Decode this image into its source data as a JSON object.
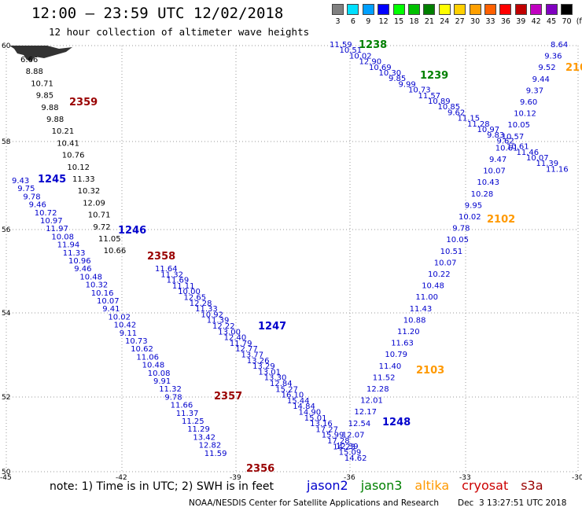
{
  "header": {
    "title": "12:00 – 23:59 UTC 12/02/2018",
    "subtitle": "12 hour collection of altimeter wave heights"
  },
  "colorscale": {
    "labels": [
      "3",
      "6",
      "9",
      "12",
      "15",
      "18",
      "21",
      "24",
      "27",
      "30",
      "33",
      "36",
      "39",
      "42",
      "45",
      "70",
      "(ft)"
    ],
    "colors": [
      "#808080",
      "#00e0ff",
      "#00a0ff",
      "#0000ff",
      "#00ff00",
      "#00c000",
      "#008000",
      "#ffff00",
      "#ffd000",
      "#ffa000",
      "#ff6000",
      "#ff0000",
      "#c00000",
      "#c000c0",
      "#8000c0",
      "#000000"
    ]
  },
  "axes": {
    "lat_labels": [
      "60",
      "58",
      "56",
      "54",
      "52",
      "50"
    ],
    "lon_labels": [
      "-45",
      "-42",
      "-39",
      "-36",
      "-33",
      "-30"
    ]
  },
  "colors": {
    "jason2": "#0000cc",
    "jason3": "#008000",
    "altika": "#ff9900",
    "cryosat": "#cc0000",
    "s3a": "#990000",
    "j3_obs": "#66cc44",
    "s3a_obs": "#22aacc"
  },
  "times": [
    {
      "t": "1238",
      "c": "jason3"
    },
    {
      "t": "1239",
      "c": "jason3"
    },
    {
      "t": "2102",
      "c": "altika"
    },
    {
      "t": "210",
      "c": "altika"
    },
    {
      "t": "2359",
      "c": "s3a"
    },
    {
      "t": "1245",
      "c": "jason2"
    },
    {
      "t": "1246",
      "c": "jason2"
    },
    {
      "t": "2358",
      "c": "s3a"
    },
    {
      "t": "1247",
      "c": "jason2"
    },
    {
      "t": "2103",
      "c": "altika"
    },
    {
      "t": "2357",
      "c": "s3a"
    },
    {
      "t": "1248",
      "c": "jason2"
    },
    {
      "t": "2356",
      "c": "s3a"
    }
  ],
  "tracks": {
    "s3a_top": [
      "6.66",
      "8.88",
      "10.71",
      "9.85",
      "9.88",
      "9.88",
      "10.21",
      "10.41",
      "10.76",
      "10.12",
      "11.33",
      "10.32",
      "12.09",
      "10.71",
      "9.72",
      "11.05",
      "10.66"
    ],
    "s3a_top_colors": [
      "s3a_obs",
      "s3a_obs",
      "jason2",
      "jason2",
      "jason2",
      "jason2",
      "jason2",
      "jason2",
      "jason2",
      "jason2",
      "jason2",
      "jason2",
      "j3_obs",
      "jason2",
      "jason2",
      "jason2",
      "jason2"
    ],
    "jason2_left": [
      "9.43",
      "9.75",
      "9.78",
      "9.46",
      "10.72",
      "10.97",
      "11.97",
      "10.08",
      "11.94",
      "11.33",
      "10.96",
      "9.46",
      "10.48",
      "10.32",
      "10.16",
      "10.07",
      "9.41",
      "10.02",
      "10.42",
      "9.11",
      "10.73",
      "10.62",
      "11.06",
      "10.48",
      "10.08",
      "9.91",
      "11.32",
      "9.78",
      "11.66",
      "11.37",
      "11.25",
      "11.29",
      "13.42",
      "12.82",
      "11.59"
    ],
    "jason2_mid": [
      "11.64",
      "11.32",
      "11.69",
      "11.11",
      "10.00",
      "12.65",
      "12.28",
      "11.33",
      "10.92",
      "11.39",
      "12.22",
      "13.00",
      "12.40",
      "11.79",
      "12.77",
      "13.77",
      "13.26",
      "13.29",
      "13.01",
      "13.30",
      "12.84",
      "15.27",
      "16.10",
      "15.44",
      "14.84",
      "14.90",
      "15.01",
      "13.16",
      "17.27",
      "15.99",
      "17.28",
      "14.23",
      "15.09",
      "14.62"
    ],
    "jason3_top": [
      "11.59",
      "10.51",
      "10.02",
      "12.90",
      "10.69",
      "10.30",
      "9.85",
      "9.99",
      "10.73",
      "11.57",
      "10.89",
      "10.85",
      "9.62",
      "11.15",
      "11.28",
      "10.97",
      "9.83",
      "9.62",
      "10.61",
      "11.46",
      "10.07",
      "11.39",
      "11.16"
    ],
    "altika_up": [
      "8.64",
      "9.36",
      "9.52",
      "9.44",
      "9.37",
      "9.60",
      "10.12",
      "10.05",
      "10.57",
      "10.61",
      "9.47",
      "10.07",
      "10.43",
      "10.28",
      "9.95",
      "10.02",
      "9.78",
      "10.05",
      "10.51",
      "10.07",
      "10.22",
      "10.48",
      "11.00",
      "11.43",
      "10.88",
      "11.20",
      "11.63",
      "10.79",
      "11.40",
      "11.52",
      "12.28",
      "12.01",
      "12.17",
      "12.54",
      "12.07",
      "12.39"
    ]
  },
  "legend": {
    "note": "note: 1) Time is in UTC; 2) SWH is in feet",
    "sats": [
      {
        "name": "jason2",
        "color": "#0000cc"
      },
      {
        "name": "jason3",
        "color": "#008000"
      },
      {
        "name": "altika",
        "color": "#ff9900"
      },
      {
        "name": "cryosat",
        "color": "#cc0000"
      },
      {
        "name": "s3a",
        "color": "#990000"
      }
    ]
  },
  "footer": {
    "credit": "NOAA/NESDIS Center for Satellite Applications and Research",
    "stamp": "Dec  3 13:27:51 UTC 2018"
  }
}
